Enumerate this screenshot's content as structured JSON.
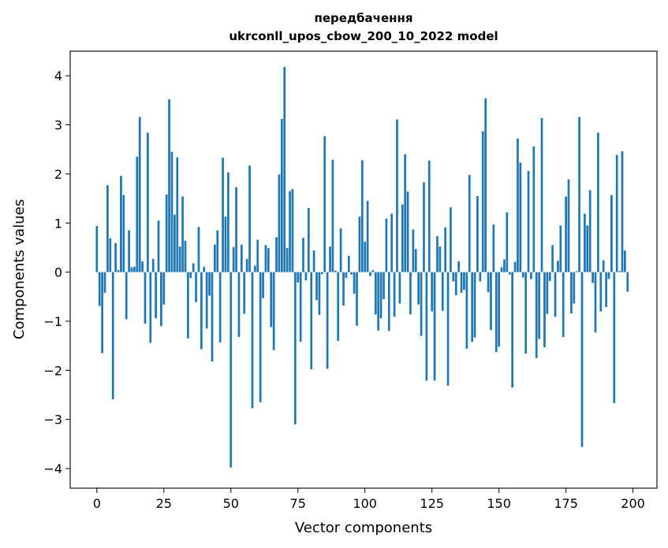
{
  "chart_data": {
    "type": "bar",
    "title_line1": "передбачення",
    "title_line2": "ukrconll_upos_cbow_200_10_2022 model",
    "xlabel": "Vector components",
    "ylabel": "Components values",
    "xlim": [
      -9.95,
      208.95
    ],
    "ylim": [
      -4.4,
      4.5
    ],
    "xticks": [
      0,
      25,
      50,
      75,
      100,
      125,
      150,
      175,
      200
    ],
    "yticks": [
      -4,
      -3,
      -2,
      -1,
      0,
      1,
      2,
      3,
      4
    ],
    "ytick_labels": [
      "−4",
      "−3",
      "−2",
      "−1",
      "0",
      "1",
      "2",
      "3",
      "4"
    ],
    "grid": false,
    "bar_color": "#1f77b4",
    "values": [
      0.94,
      -0.69,
      -1.65,
      -0.42,
      1.77,
      0.69,
      -2.59,
      0.59,
      0.04,
      1.96,
      1.57,
      -0.96,
      0.85,
      0.1,
      0.11,
      2.35,
      3.16,
      0.22,
      -1.05,
      2.84,
      -1.44,
      0.27,
      -0.94,
      1.05,
      -1.1,
      -0.66,
      1.58,
      3.52,
      2.45,
      1.17,
      2.34,
      0.52,
      1.54,
      0.64,
      -1.35,
      -0.12,
      0.18,
      -0.61,
      0.92,
      -1.57,
      0.11,
      -1.15,
      -0.48,
      -1.82,
      0.56,
      0.85,
      -1.43,
      2.33,
      1.13,
      2.03,
      -3.98,
      0.51,
      1.73,
      -1.32,
      0.56,
      -0.85,
      0.27,
      2.17,
      -2.77,
      0.13,
      0.66,
      -2.65,
      -0.53,
      0.55,
      0.49,
      -1.12,
      -1.59,
      0.71,
      1.99,
      3.12,
      4.18,
      0.49,
      1.65,
      1.69,
      -3.1,
      -0.21,
      -1.42,
      0.7,
      -0.17,
      1.31,
      -1.98,
      0.44,
      -0.57,
      -0.87,
      -0.04,
      2.77,
      -1.97,
      0.52,
      2.29,
      0.03,
      -1.4,
      0.89,
      -0.68,
      -0.12,
      0.33,
      -0.05,
      -0.44,
      -1.09,
      1.13,
      2.28,
      0.62,
      1.45,
      -0.08,
      0.04,
      -0.86,
      -1.19,
      -0.94,
      -0.55,
      1.09,
      -1.2,
      1.19,
      -0.91,
      3.11,
      -0.64,
      1.38,
      2.4,
      1.64,
      -0.86,
      0.87,
      0.47,
      -0.66,
      -1.3,
      1.83,
      -2.21,
      2.27,
      -0.8,
      -2.21,
      0.73,
      0.52,
      -0.79,
      0.91,
      -2.31,
      1.32,
      -0.19,
      -0.47,
      0.22,
      -0.42,
      -0.36,
      -1.56,
      1.98,
      -1.42,
      -1.33,
      1.55,
      -0.19,
      2.87,
      3.54,
      -0.41,
      -1.18,
      0.97,
      -1.63,
      -1.52,
      0.1,
      0.26,
      1.22,
      -0.05,
      -2.35,
      0.21,
      2.72,
      2.23,
      -0.11,
      -1.66,
      2.06,
      -0.14,
      2.56,
      -1.75,
      -1.36,
      3.14,
      -1.53,
      -0.85,
      -0.18,
      0.55,
      -0.91,
      0.23,
      0.95,
      -1.32,
      1.54,
      1.89,
      -0.84,
      -0.64,
      0.02,
      3.16,
      -3.56,
      1.19,
      0.95,
      1.67,
      -0.22,
      -1.23,
      2.84,
      -0.8,
      0.24,
      -0.71,
      -0.14,
      1.57,
      -2.67,
      2.39,
      0.02,
      2.46,
      0.44,
      -0.4
    ]
  }
}
